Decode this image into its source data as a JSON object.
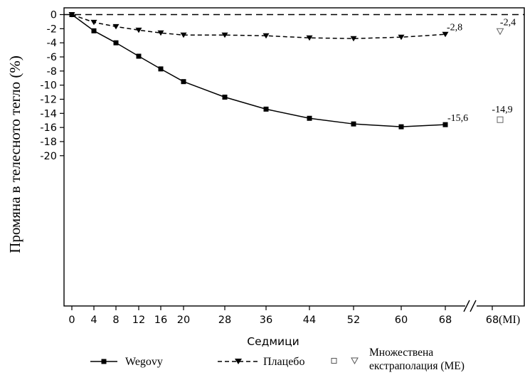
{
  "chart_data": {
    "type": "line",
    "ylabel": "Промяна в телесното тегло (%)",
    "xlabel": "Седмици",
    "ylim": [
      -20,
      0
    ],
    "y_ticks": [
      "0",
      "-2",
      "-4",
      "-6",
      "-8",
      "-10",
      "-12",
      "-14",
      "-16",
      "-18",
      "-20"
    ],
    "categories": [
      "0",
      "4",
      "8",
      "12",
      "16",
      "20",
      "28",
      "36",
      "44",
      "52",
      "60",
      "68"
    ],
    "extra_category": "68",
    "extra_category_suffix": "(MI)",
    "series": [
      {
        "name": "Wegovy",
        "values": [
          0,
          -2.3,
          -4.0,
          -5.9,
          -7.7,
          -9.5,
          -11.7,
          -13.4,
          -14.7,
          -15.5,
          -15.9,
          -15.6
        ],
        "end_label": "-15,6",
        "color": "#000000",
        "marker": "square",
        "line": "solid"
      },
      {
        "name": "Плацебо",
        "values": [
          0,
          -1.1,
          -1.7,
          -2.2,
          -2.6,
          -2.9,
          -2.9,
          -3.0,
          -3.3,
          -3.4,
          -3.2,
          -2.8
        ],
        "end_label": "-2,8",
        "color": "#000000",
        "marker": "triangle-down",
        "line": "dashed"
      }
    ],
    "imputation": {
      "label": "Множествена екстраполация (МЕ)",
      "wegovy_value": -14.9,
      "wegovy_label": "-14,9",
      "placebo_value": -2.4,
      "placebo_label": "-2,4"
    },
    "reference_line": 0,
    "grid": false,
    "legend_position": "bottom"
  }
}
